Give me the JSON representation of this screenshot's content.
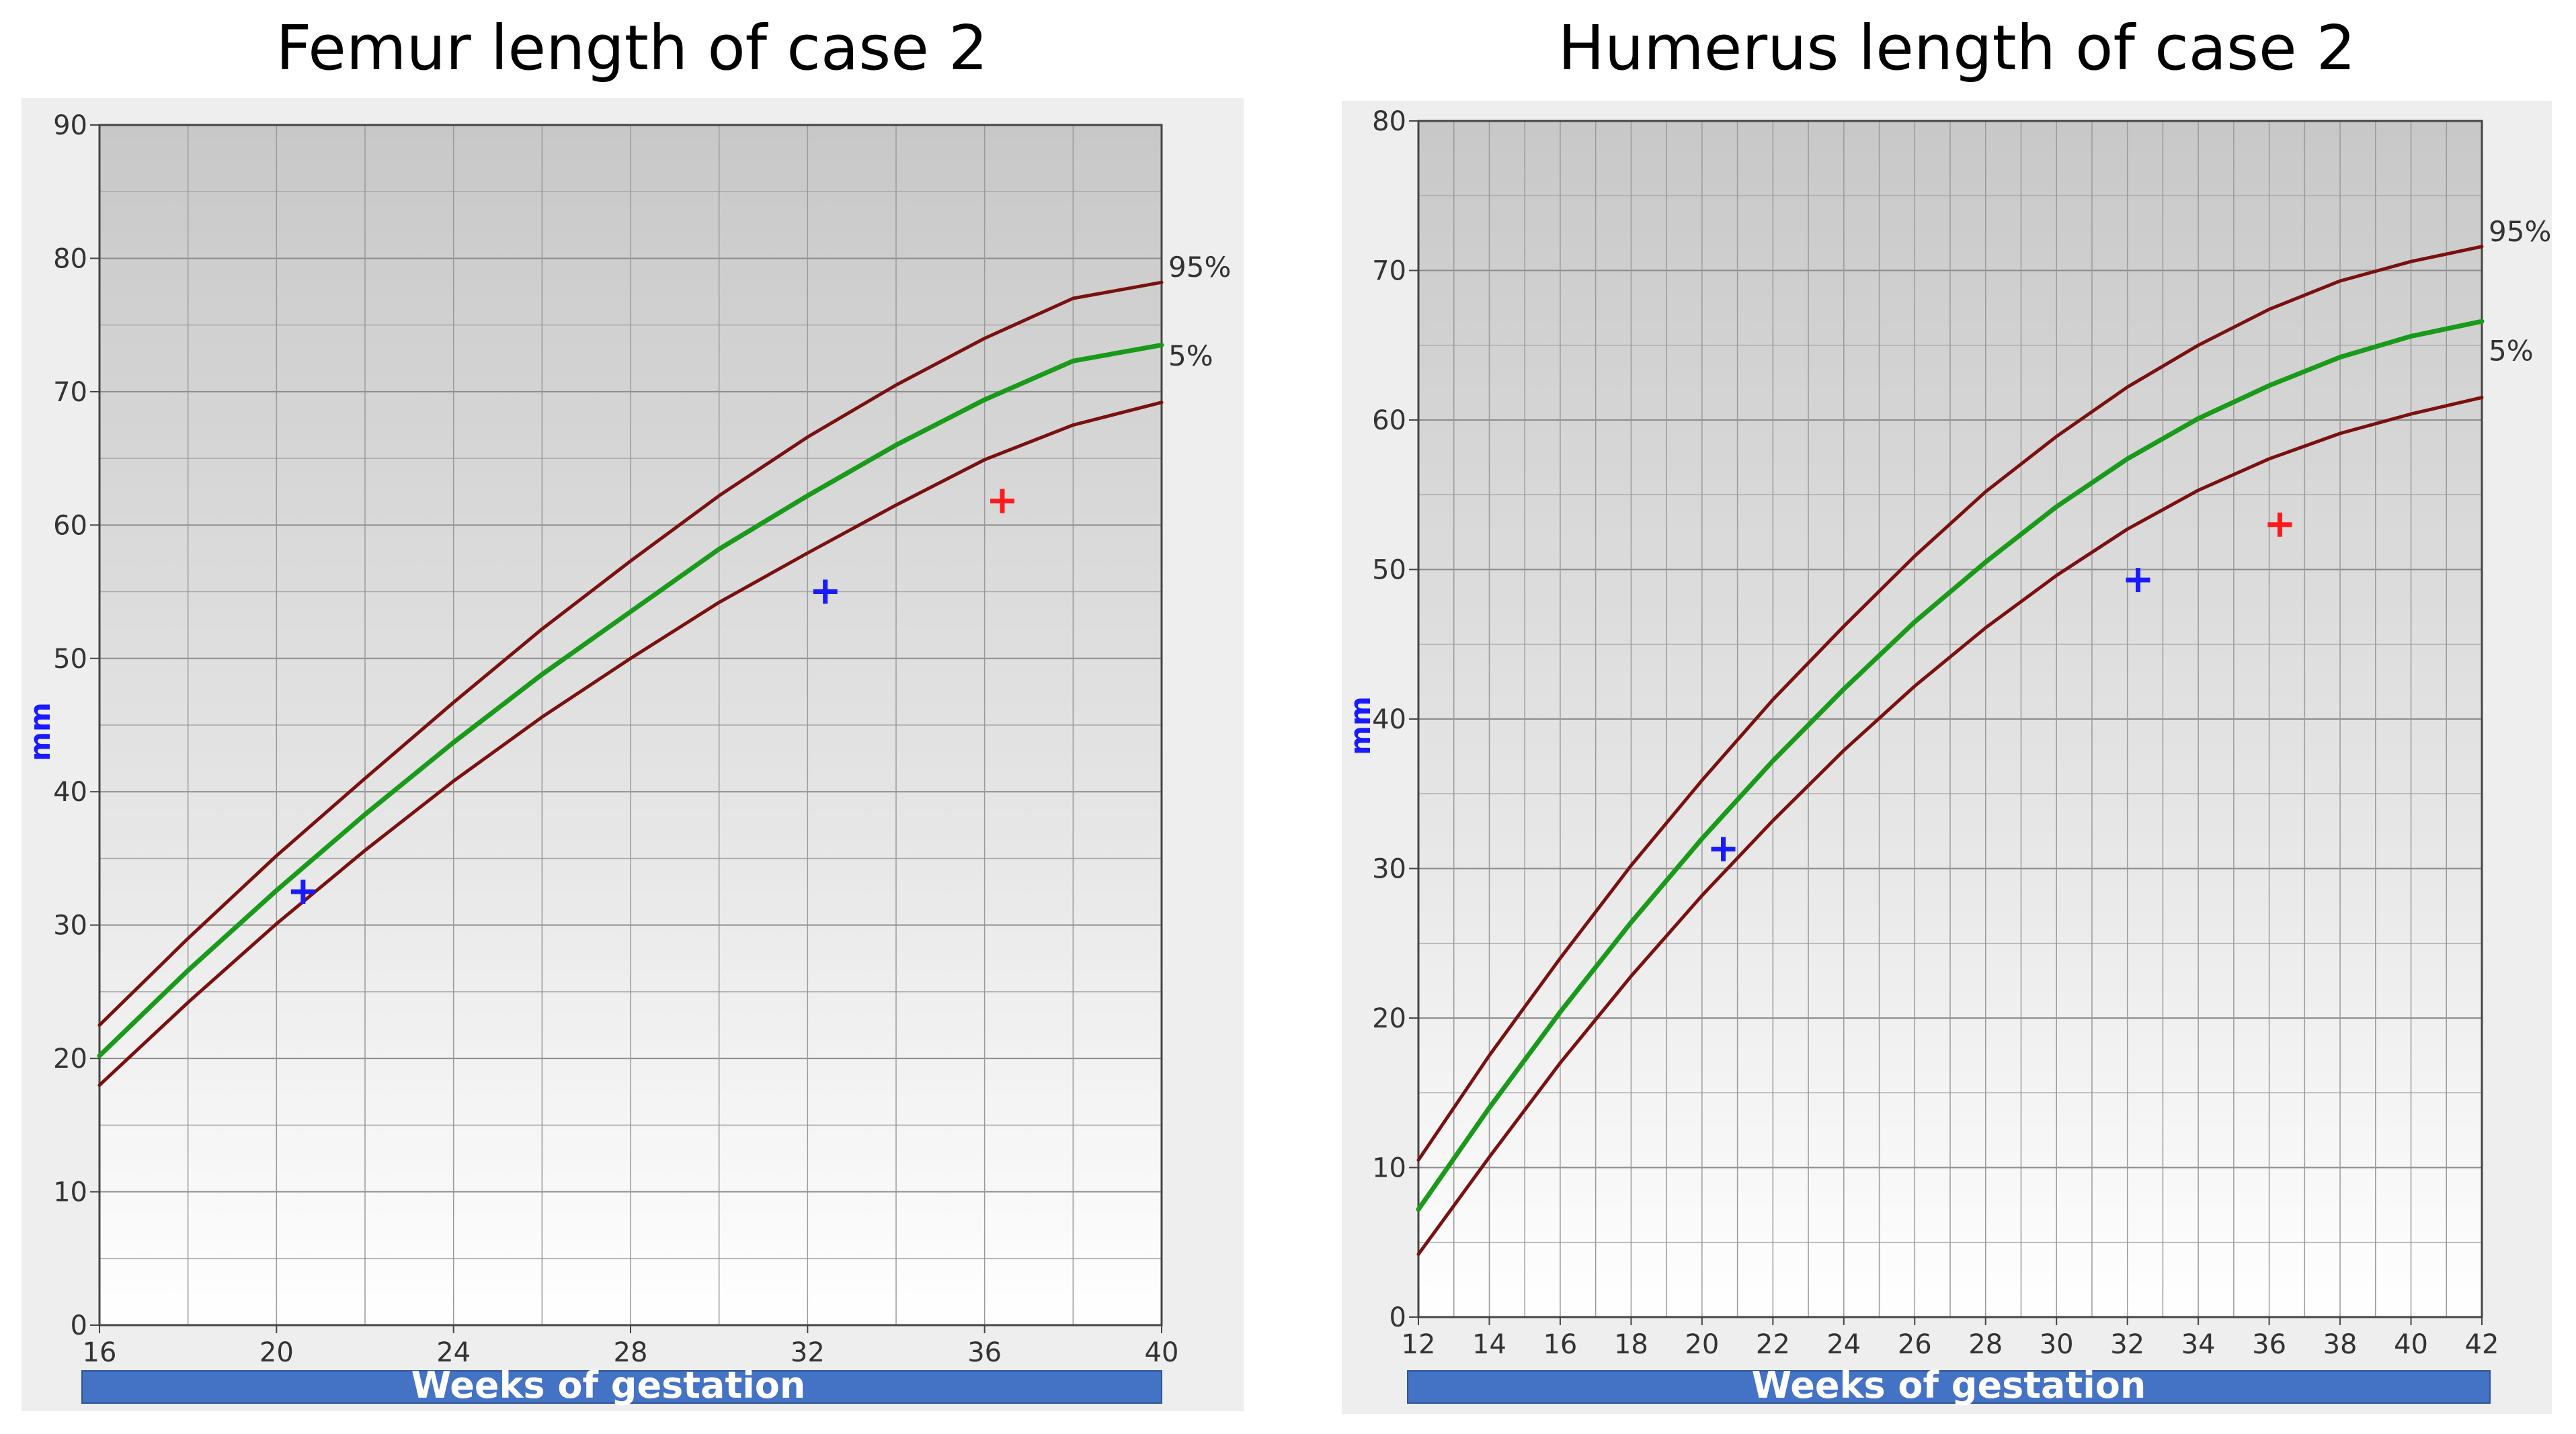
{
  "chart_data": [
    {
      "type": "line",
      "title": "Femur length of case 2",
      "xlabel": "Weeks of gestation",
      "ylabel": "mm",
      "xlim": [
        16,
        40
      ],
      "ylim": [
        0,
        90
      ],
      "xticks": [
        16,
        20,
        24,
        28,
        32,
        36,
        40
      ],
      "yticks": [
        0,
        10,
        20,
        30,
        40,
        50,
        60,
        70,
        80,
        90
      ],
      "grid": true,
      "series": [
        {
          "name": "95%",
          "color": "#7a1010",
          "x": [
            16,
            18,
            20,
            22,
            24,
            26,
            28,
            30,
            32,
            34,
            36,
            38,
            40
          ],
          "y": [
            22.5,
            29,
            35.2,
            41,
            46.7,
            52.2,
            57.3,
            62.2,
            66.6,
            70.5,
            74,
            77,
            78.2
          ]
        },
        {
          "name": "",
          "color": "#1a9a1a",
          "x": [
            16,
            18,
            20,
            22,
            24,
            26,
            28,
            30,
            32,
            34,
            36,
            38,
            40
          ],
          "y": [
            20.2,
            26.6,
            32.6,
            38.3,
            43.7,
            48.8,
            53.5,
            58.2,
            62.2,
            66,
            69.4,
            72.3,
            73.5
          ]
        },
        {
          "name": "5%",
          "color": "#7a1010",
          "x": [
            16,
            18,
            20,
            22,
            24,
            26,
            28,
            30,
            32,
            34,
            36,
            38,
            40
          ],
          "y": [
            18,
            24.2,
            30.1,
            35.6,
            40.8,
            45.6,
            50,
            54.2,
            57.9,
            61.5,
            64.9,
            67.5,
            69.2
          ]
        }
      ],
      "markers": [
        {
          "x": 20.6,
          "y": 32.5,
          "color": "#1a1aff"
        },
        {
          "x": 32.4,
          "y": 55,
          "color": "#1a1aff"
        },
        {
          "x": 36.4,
          "y": 61.8,
          "color": "#ff1a1a"
        }
      ]
    },
    {
      "type": "line",
      "title": "Humerus length of case 2",
      "xlabel": "Weeks of gestation",
      "ylabel": "mm",
      "xlim": [
        12,
        42
      ],
      "ylim": [
        0,
        80
      ],
      "xticks": [
        12,
        14,
        16,
        18,
        20,
        22,
        24,
        26,
        28,
        30,
        32,
        34,
        36,
        38,
        40,
        42
      ],
      "yticks": [
        0,
        10,
        20,
        30,
        40,
        50,
        60,
        70,
        80
      ],
      "grid": true,
      "series": [
        {
          "name": "95%",
          "color": "#7a1010",
          "x": [
            12,
            14,
            16,
            18,
            20,
            22,
            24,
            26,
            28,
            30,
            32,
            34,
            36,
            38,
            40,
            42
          ],
          "y": [
            10.5,
            17.5,
            24,
            30.2,
            35.9,
            41.3,
            46.2,
            50.9,
            55.2,
            58.9,
            62.2,
            65,
            67.4,
            69.3,
            70.6,
            71.6
          ]
        },
        {
          "name": "",
          "color": "#1a9a1a",
          "x": [
            12,
            14,
            16,
            18,
            20,
            22,
            24,
            26,
            28,
            30,
            32,
            34,
            36,
            38,
            40,
            42
          ],
          "y": [
            7.2,
            14,
            20.4,
            26.4,
            32,
            37.2,
            42,
            46.5,
            50.5,
            54.2,
            57.4,
            60.1,
            62.3,
            64.2,
            65.6,
            66.6
          ]
        },
        {
          "name": "5%",
          "color": "#7a1010",
          "x": [
            12,
            14,
            16,
            18,
            20,
            22,
            24,
            26,
            28,
            30,
            32,
            34,
            36,
            38,
            40,
            42
          ],
          "y": [
            4.2,
            10.7,
            17,
            22.8,
            28.2,
            33.2,
            37.9,
            42.2,
            46.1,
            49.6,
            52.7,
            55.3,
            57.4,
            59.1,
            60.4,
            61.5
          ]
        }
      ],
      "markers": [
        {
          "x": 20.6,
          "y": 31.3,
          "color": "#1a1aff"
        },
        {
          "x": 32.3,
          "y": 49.3,
          "color": "#1a1aff"
        },
        {
          "x": 36.3,
          "y": 53,
          "color": "#ff1a1a"
        }
      ]
    }
  ]
}
